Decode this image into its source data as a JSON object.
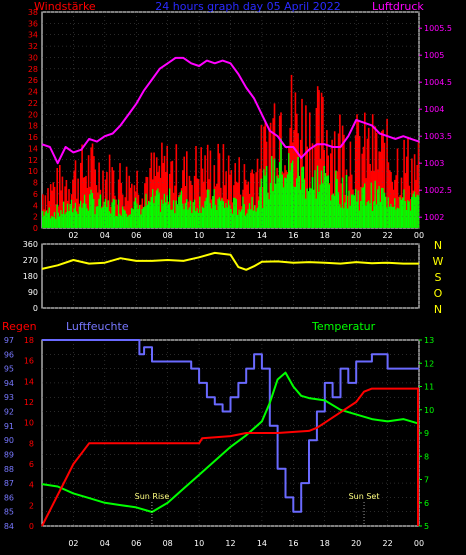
{
  "header": {
    "left_title": "Windstärke",
    "center_title": "24 hours graph day   05 April 2022",
    "right_title": "Luftdruck"
  },
  "colors": {
    "wind_gust": "#ff0000",
    "wind_avg": "#00ff00",
    "pressure": "#ff00ff",
    "direction": "#ffff00",
    "rain": "#ff0000",
    "humidity": "#6a6aff",
    "temperature": "#00ff00",
    "frame": "#ffffff",
    "left_axis": "#ff0000",
    "humidity_axis": "#7878ff"
  },
  "sun_labels": [
    {
      "label": "Sun Rise",
      "hour": 7.0
    },
    {
      "label": "Sun Set",
      "hour": 20.5
    }
  ],
  "chart_data": [
    {
      "type": "bar",
      "title": "24 hours graph day   05 April 2022",
      "x": {
        "ticks": [
          "02",
          "04",
          "06",
          "08",
          "10",
          "12",
          "14",
          "16",
          "18",
          "20",
          "22",
          "00"
        ],
        "range_hours": [
          0,
          24
        ]
      },
      "left_axis": {
        "label": "Windstärke",
        "range": [
          0,
          38
        ],
        "ticks": [
          0,
          2,
          4,
          6,
          8,
          10,
          12,
          14,
          16,
          18,
          20,
          22,
          24,
          26,
          28,
          30,
          32,
          34,
          36,
          38
        ]
      },
      "right_axis": {
        "label": "Luftdruck",
        "range": [
          1001.8,
          1005.8
        ],
        "ticks": [
          "1002",
          "1002.5",
          "1003",
          "1003.5",
          "1004",
          "1004.5",
          "1005",
          "1005.5"
        ]
      },
      "wind_profile": {
        "hours": [
          0,
          1,
          2,
          3,
          4,
          5,
          6,
          7,
          8,
          9,
          10,
          11,
          12,
          13,
          14,
          15,
          16,
          17,
          18,
          19,
          20,
          21,
          22,
          23,
          24
        ],
        "gust_typical": [
          6,
          7,
          9,
          10,
          9,
          8,
          8,
          9,
          10,
          9,
          10,
          10,
          9,
          8,
          12,
          20,
          18,
          16,
          16,
          14,
          13,
          13,
          12,
          11,
          10
        ],
        "avg_typical": [
          3,
          3,
          4,
          5,
          4,
          4,
          4,
          5,
          5,
          5,
          5,
          5,
          4,
          4,
          7,
          12,
          10,
          9,
          9,
          7,
          6,
          6,
          6,
          5,
          5
        ]
      },
      "series": [
        {
          "name": "Luftdruck",
          "axis": "right",
          "x": [
            0,
            0.5,
            1,
            1.5,
            2,
            2.5,
            3,
            3.5,
            4,
            4.5,
            5,
            5.5,
            6,
            6.5,
            7,
            7.5,
            8,
            8.5,
            9,
            9.5,
            10,
            10.5,
            11,
            11.5,
            12,
            12.5,
            13,
            13.5,
            14,
            14.5,
            15,
            15.5,
            16,
            16.5,
            17,
            17.5,
            18,
            18.5,
            19,
            19.5,
            20,
            20.5,
            21,
            21.5,
            22,
            22.5,
            23,
            23.5,
            24
          ],
          "y": [
            1003.35,
            1003.3,
            1003.0,
            1003.3,
            1003.2,
            1003.25,
            1003.45,
            1003.4,
            1003.5,
            1003.55,
            1003.7,
            1003.9,
            1004.1,
            1004.35,
            1004.55,
            1004.75,
            1004.85,
            1004.95,
            1004.95,
            1004.85,
            1004.8,
            1004.9,
            1004.85,
            1004.9,
            1004.85,
            1004.65,
            1004.4,
            1004.2,
            1003.9,
            1003.6,
            1003.5,
            1003.3,
            1003.3,
            1003.1,
            1003.25,
            1003.35,
            1003.35,
            1003.3,
            1003.3,
            1003.5,
            1003.8,
            1003.75,
            1003.7,
            1003.55,
            1003.5,
            1003.45,
            1003.5,
            1003.45,
            1003.4
          ]
        }
      ]
    },
    {
      "type": "line",
      "x": {
        "range_hours": [
          0,
          24
        ]
      },
      "y": {
        "range": [
          0,
          360
        ],
        "ticks": [
          0,
          90,
          180,
          270,
          360
        ]
      },
      "right_labels": [
        "N",
        "W",
        "S",
        "O",
        "N"
      ],
      "series": [
        {
          "name": "direction",
          "x": [
            0,
            1,
            2,
            3,
            4,
            5,
            6,
            7,
            8,
            9,
            10,
            11,
            12,
            12.5,
            13,
            13.5,
            14,
            15,
            16,
            17,
            18,
            19,
            20,
            21,
            22,
            23,
            24
          ],
          "y": [
            220,
            240,
            270,
            250,
            255,
            280,
            265,
            265,
            270,
            265,
            285,
            310,
            300,
            230,
            215,
            235,
            260,
            262,
            255,
            258,
            255,
            250,
            258,
            252,
            255,
            250,
            250
          ]
        }
      ]
    },
    {
      "type": "line",
      "left_outer_axis": {
        "label": "Regen",
        "range": [
          0,
          18
        ],
        "ticks": [
          0,
          1,
          2,
          3,
          4,
          5,
          6,
          7,
          8,
          9,
          10,
          11,
          12,
          13,
          14,
          15,
          16,
          17,
          18
        ]
      },
      "left_inner_axis": {
        "label": "Luftfeuchte",
        "range": [
          84,
          97
        ],
        "ticks": [
          84,
          85,
          86,
          87,
          88,
          89,
          90,
          91,
          92,
          93,
          94,
          95,
          96,
          97
        ]
      },
      "right_axis": {
        "label": "Temperatur",
        "range": [
          5,
          13
        ],
        "ticks": [
          5,
          6,
          7,
          8,
          9,
          10,
          11,
          12,
          13
        ]
      },
      "series": [
        {
          "name": "Regen",
          "axis": "left_outer",
          "x": [
            0,
            0.5,
            1,
            1.5,
            2,
            2.5,
            3,
            10,
            10.2,
            12,
            13,
            14,
            15,
            17,
            17.5,
            18,
            19,
            20,
            20.5,
            21,
            24
          ],
          "y": [
            0,
            1.5,
            3,
            4.5,
            6,
            7,
            8,
            8,
            8.5,
            8.7,
            9,
            9,
            9,
            9.2,
            9.5,
            10,
            11,
            12,
            13,
            13.3,
            13.3
          ]
        },
        {
          "name": "Luftfeuchte",
          "axis": "left_inner",
          "x": [
            0,
            6,
            6.2,
            6.5,
            7,
            8,
            9,
            9.5,
            10,
            10.5,
            11,
            11.5,
            12,
            12.5,
            13,
            13.5,
            14,
            14.5,
            15,
            15.5,
            16,
            16.5,
            17,
            17.5,
            18,
            18.5,
            19,
            19.5,
            20,
            21,
            22,
            23,
            24
          ],
          "y": [
            97,
            97,
            96,
            96.5,
            95.5,
            95.5,
            95.5,
            95,
            94,
            93,
            92.5,
            92,
            93,
            94,
            95,
            96,
            95,
            91,
            88,
            86,
            85,
            87,
            90,
            92,
            94,
            93,
            95,
            94,
            95.5,
            96,
            95,
            95,
            95
          ]
        },
        {
          "name": "Temperatur",
          "axis": "right",
          "x": [
            0,
            1,
            2,
            3,
            4,
            5,
            6,
            7,
            8,
            9,
            10,
            11,
            12,
            13,
            14,
            14.5,
            15,
            15.5,
            16,
            16.5,
            17,
            18,
            19,
            20,
            21,
            22,
            23,
            24
          ],
          "y": [
            6.8,
            6.7,
            6.4,
            6.2,
            6.0,
            5.9,
            5.8,
            5.6,
            6.0,
            6.6,
            7.2,
            7.8,
            8.4,
            8.9,
            9.5,
            10.3,
            11.3,
            11.6,
            11.0,
            10.6,
            10.5,
            10.4,
            10.0,
            9.8,
            9.6,
            9.5,
            9.6,
            9.4
          ]
        }
      ]
    }
  ]
}
